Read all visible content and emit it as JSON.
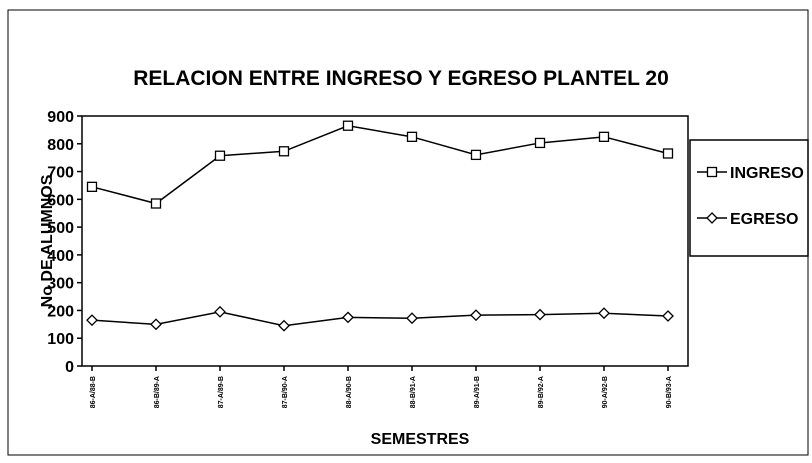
{
  "chart_data": {
    "type": "line",
    "title": "RELACION ENTRE INGRESO Y EGRESO PLANTEL 20",
    "x_label": "SEMESTRES",
    "y_label": "No DE ALUMNOS",
    "categories": [
      "86-A/88-B",
      "86-B/89-A",
      "87-A/89-B",
      "87-B/90-A",
      "88-A/90-B",
      "88-B/91-A",
      "89-A/91-B",
      "89-B/92-A",
      "90-A/92-B",
      "90-B/93-A"
    ],
    "series": [
      {
        "name": "INGRESO",
        "color": "#000000",
        "marker": "square",
        "values": [
          645,
          585,
          757,
          773,
          865,
          825,
          760,
          803,
          825,
          765
        ]
      },
      {
        "name": "EGRESO",
        "color": "#000000",
        "marker": "diamond",
        "values": [
          165,
          150,
          195,
          145,
          175,
          172,
          183,
          185,
          190,
          180
        ]
      }
    ],
    "ylim": [
      0,
      900
    ],
    "yticks": [
      0,
      100,
      200,
      300,
      400,
      500,
      600,
      700,
      800,
      900
    ],
    "legend": "right"
  }
}
